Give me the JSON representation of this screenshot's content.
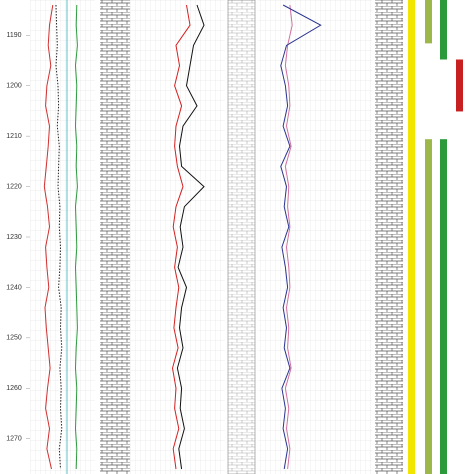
{
  "chart_data": {
    "type": "well-log",
    "ylim": [
      1183,
      1277
    ],
    "yticks": [
      1190,
      1200,
      1210,
      1220,
      1230,
      1240,
      1250,
      1260,
      1270
    ],
    "x": [
      1184,
      1188,
      1192,
      1196,
      1200,
      1204,
      1208,
      1212,
      1216,
      1220,
      1224,
      1228,
      1232,
      1236,
      1240,
      1244,
      1248,
      1252,
      1256,
      1260,
      1264,
      1268,
      1272,
      1276
    ],
    "tracks": [
      {
        "xlim": [
          0,
          100
        ],
        "series": [
          {
            "color": "#d03030",
            "dash": false,
            "values": [
              35,
              30,
              28,
              32,
              26,
              24,
              30,
              28,
              25,
              22,
              27,
              30,
              24,
              26,
              29,
              23,
              25,
              28,
              31,
              27,
              24,
              30,
              26,
              33
            ]
          },
          {
            "color": "#2e9a3e",
            "dash": false,
            "values": [
              72,
              71,
              73,
              70,
              72,
              71,
              70,
              72,
              71,
              73,
              70,
              71,
              72,
              70,
              71,
              72,
              73,
              71,
              70,
              72,
              71,
              70,
              72,
              71
            ]
          },
          {
            "color": "#222222",
            "dash": true,
            "values": [
              40,
              41,
              42,
              40,
              43,
              44,
              42,
              45,
              44,
              43,
              46,
              45,
              47,
              46,
              44,
              48,
              47,
              49,
              46,
              48,
              47,
              49,
              45,
              47
            ]
          }
        ]
      },
      {
        "xlim": [
          0,
          100
        ],
        "series": [
          {
            "color": "#d42020",
            "dash": false,
            "values": [
              45,
              50,
              30,
              35,
              28,
              38,
              30,
              28,
              32,
              40,
              30,
              26,
              32,
              28,
              34,
              30,
              27,
              33,
              25,
              30,
              28,
              34,
              26,
              30
            ]
          },
          {
            "color": "#111111",
            "dash": false,
            "values": [
              60,
              70,
              55,
              50,
              45,
              60,
              40,
              35,
              38,
              70,
              42,
              36,
              40,
              33,
              45,
              38,
              35,
              40,
              32,
              38,
              36,
              42,
              34,
              38
            ]
          }
        ]
      },
      {
        "xlim": [
          0,
          100
        ],
        "series": [
          {
            "color": "#d070a0",
            "dash": false,
            "values": [
              28,
              30,
              26,
              24,
              27,
              28,
              25,
              29,
              24,
              27,
              26,
              28,
              25,
              27,
              28,
              25,
              27,
              26,
              29,
              24,
              27,
              25,
              28,
              26
            ]
          },
          {
            "color": "#2a3590",
            "dash": false,
            "values": [
              22,
              55,
              25,
              20,
              24,
              26,
              22,
              28,
              20,
              25,
              23,
              27,
              21,
              24,
              26,
              22,
              25,
              23,
              28,
              21,
              24,
              22,
              26,
              23
            ]
          }
        ]
      }
    ],
    "zones": [
      {
        "color": "#f2e600",
        "intervals": [
          [
            1183,
            1277
          ]
        ]
      },
      {
        "color": "#9cb84a",
        "intervals": [
          [
            1183,
            1191.6
          ],
          [
            1210.6,
            1277
          ]
        ]
      },
      {
        "color": "#2a9a3a",
        "intervals": [
          [
            1183,
            1194.8
          ],
          [
            1210.6,
            1277
          ]
        ]
      },
      {
        "color": "#c82020",
        "intervals": [
          [
            1194.8,
            1205.1
          ]
        ]
      }
    ]
  }
}
